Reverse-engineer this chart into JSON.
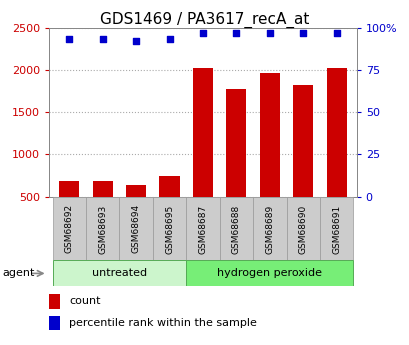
{
  "title": "GDS1469 / PA3617_recA_at",
  "samples": [
    "GSM68692",
    "GSM68693",
    "GSM68694",
    "GSM68695",
    "GSM68687",
    "GSM68688",
    "GSM68689",
    "GSM68690",
    "GSM68691"
  ],
  "counts": [
    680,
    690,
    635,
    740,
    2020,
    1770,
    1960,
    1820,
    2020
  ],
  "percentiles": [
    93,
    93,
    92,
    93,
    97,
    97,
    97,
    97,
    97
  ],
  "groups": [
    {
      "label": "untreated",
      "start": 0,
      "end": 4
    },
    {
      "label": "hydrogen peroxide",
      "start": 4,
      "end": 9
    }
  ],
  "group_colors": [
    "#ccf5cc",
    "#77ee77"
  ],
  "bar_color": "#cc0000",
  "dot_color": "#0000cc",
  "left_ylim": [
    500,
    2500
  ],
  "left_yticks": [
    500,
    1000,
    1500,
    2000,
    2500
  ],
  "right_ylim": [
    0,
    100
  ],
  "right_yticks": [
    0,
    25,
    50,
    75,
    100
  ],
  "right_yticklabels": [
    "0",
    "25",
    "50",
    "75",
    "100%"
  ],
  "left_ylabel_color": "#cc0000",
  "right_ylabel_color": "#0000cc",
  "grid_color": "#aaaaaa",
  "sample_box_color": "#cccccc",
  "agent_label": "agent",
  "legend_count_label": "count",
  "legend_pct_label": "percentile rank within the sample",
  "title_fontsize": 11,
  "tick_fontsize": 8,
  "legend_fontsize": 8,
  "group_label_fontsize": 8,
  "agent_fontsize": 8,
  "sample_fontsize": 6.5
}
